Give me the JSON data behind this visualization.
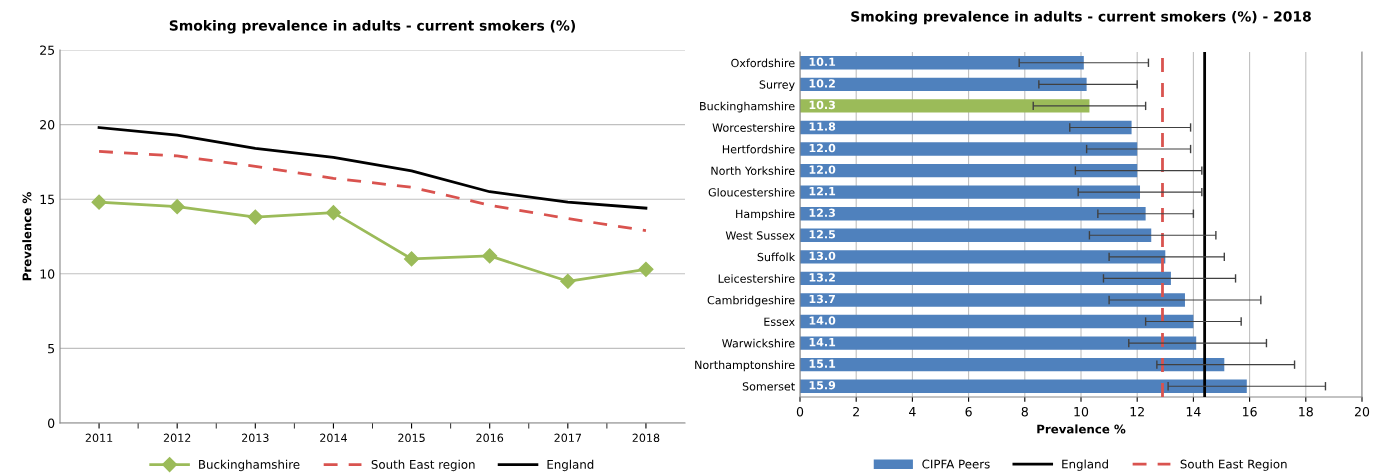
{
  "chart_data": [
    {
      "type": "line",
      "title": "Smoking prevalence in adults - current smokers (%)",
      "ylabel": "Prevalence %",
      "categories": [
        "2011",
        "2012",
        "2013",
        "2014",
        "2015",
        "2016",
        "2017",
        "2018"
      ],
      "ylim": [
        0,
        25
      ],
      "yticks": [
        0,
        5,
        10,
        15,
        20,
        25
      ],
      "grid": "y",
      "legend": "bottom",
      "series": [
        {
          "name": "Buckinghamshire",
          "color": "#9bbb59",
          "marker": "diamond",
          "line_style": "solid",
          "values": [
            14.8,
            14.5,
            13.8,
            14.1,
            11.0,
            11.2,
            9.5,
            10.3
          ]
        },
        {
          "name": "South East region",
          "color": "#d9534f",
          "marker": "none",
          "line_style": "dashed",
          "values": [
            18.2,
            17.9,
            17.2,
            16.4,
            15.8,
            14.6,
            13.7,
            12.9
          ]
        },
        {
          "name": "England",
          "color": "#000000",
          "marker": "none",
          "line_style": "solid",
          "values": [
            19.8,
            19.3,
            18.4,
            17.8,
            16.9,
            15.5,
            14.8,
            14.4
          ]
        }
      ]
    },
    {
      "type": "bar",
      "orientation": "horizontal",
      "title": "Smoking prevalence in adults - current smokers (%) - 2018",
      "xlabel": "Prevalence %",
      "xlim": [
        0,
        20
      ],
      "xticks": [
        0,
        2,
        4,
        6,
        8,
        10,
        12,
        14,
        16,
        18,
        20
      ],
      "grid": "x",
      "legend": "bottom",
      "categories": [
        "Oxfordshire",
        "Surrey",
        "Buckinghamshire",
        "Worcestershire",
        "Hertfordshire",
        "North Yorkshire",
        "Gloucestershire",
        "Hampshire",
        "West Sussex",
        "Suffolk",
        "Leicestershire",
        "Cambridgeshire",
        "Essex",
        "Warwickshire",
        "Northamptonshire",
        "Somerset"
      ],
      "series": [
        {
          "name": "CIPFA Peers",
          "color": "#4f81bd",
          "colors": [
            "#4f81bd",
            "#4f81bd",
            "#9bbb59",
            "#4f81bd",
            "#4f81bd",
            "#4f81bd",
            "#4f81bd",
            "#4f81bd",
            "#4f81bd",
            "#4f81bd",
            "#4f81bd",
            "#4f81bd",
            "#4f81bd",
            "#4f81bd",
            "#4f81bd",
            "#4f81bd"
          ],
          "values": [
            10.1,
            10.2,
            10.3,
            11.8,
            12.0,
            12.0,
            12.1,
            12.3,
            12.5,
            13.0,
            13.2,
            13.7,
            14.0,
            14.1,
            15.1,
            15.9
          ],
          "value_labels": [
            "10.1",
            "10.2",
            "10.3",
            "11.8",
            "12.0",
            "12.0",
            "12.1",
            "12.3",
            "12.5",
            "13.0",
            "13.2",
            "13.7",
            "14.0",
            "14.1",
            "15.1",
            "15.9"
          ],
          "errors": [
            [
              7.8,
              12.4
            ],
            [
              8.5,
              12.0
            ],
            [
              8.3,
              12.3
            ],
            [
              9.6,
              13.9
            ],
            [
              10.2,
              13.9
            ],
            [
              9.8,
              14.3
            ],
            [
              9.9,
              14.3
            ],
            [
              10.6,
              14.0
            ],
            [
              10.3,
              14.8
            ],
            [
              11.0,
              15.1
            ],
            [
              10.8,
              15.5
            ],
            [
              11.0,
              16.4
            ],
            [
              12.3,
              15.7
            ],
            [
              11.7,
              16.6
            ],
            [
              12.7,
              17.6
            ],
            [
              13.1,
              18.7
            ]
          ]
        }
      ],
      "ref_lines": [
        {
          "axis": "x",
          "value": 14.4,
          "label": "England",
          "color": "#000000",
          "line_style": "solid"
        },
        {
          "axis": "x",
          "value": 12.9,
          "label": "South East Region",
          "color": "#d9534f",
          "line_style": "dashed"
        }
      ]
    }
  ]
}
